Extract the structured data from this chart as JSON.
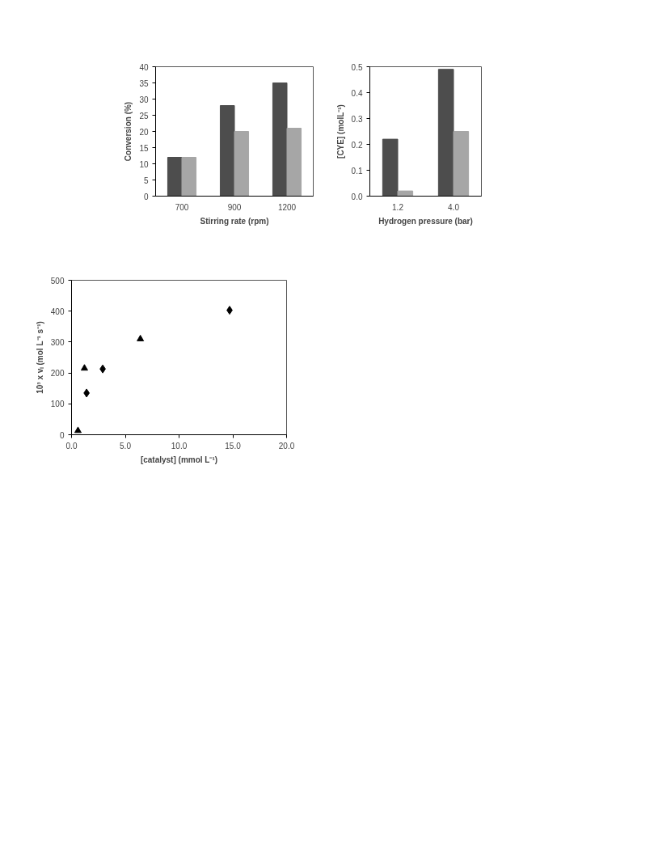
{
  "chart_data": [
    {
      "type": "bar",
      "xlabel": "Stirring rate (rpm)",
      "ylabel": "Conversion (%)",
      "categories": [
        "700",
        "900",
        "1200"
      ],
      "series": [
        {
          "color": "#4d4d4d",
          "values": [
            12,
            28,
            35
          ]
        },
        {
          "color": "#a6a6a6",
          "values": [
            12,
            20,
            21
          ]
        }
      ],
      "ylim": [
        0,
        40
      ],
      "yticks": [
        0,
        5,
        10,
        15,
        20,
        25,
        30,
        35,
        40
      ],
      "grid": false
    },
    {
      "type": "bar",
      "xlabel": "Hydrogen pressure (bar)",
      "ylabel": "[CYE] (molL⁻¹)",
      "categories": [
        "1.2",
        "4.0"
      ],
      "series": [
        {
          "color": "#4d4d4d",
          "values": [
            0.22,
            0.49
          ]
        },
        {
          "color": "#a6a6a6",
          "values": [
            0.02,
            0.25
          ]
        }
      ],
      "ylim": [
        0,
        0.5
      ],
      "yticks": [
        {
          "value": 0,
          "label": "0.0"
        },
        0.1,
        0.2,
        0.3,
        0.4,
        0.5
      ],
      "grid": false
    },
    {
      "type": "scatter",
      "xlabel": "[catalyst] (mmol L⁻¹)",
      "ylabel": "10³ x vᵢ (mol L⁻¹ s⁻¹)",
      "series": [
        {
          "color": "#000000",
          "marker": "triangle",
          "x": [
            0.6,
            1.2,
            6.4
          ],
          "values": [
            13,
            215,
            310
          ]
        },
        {
          "color": "#000000",
          "marker": "diamond",
          "x": [
            1.4,
            2.9,
            14.7
          ],
          "values": [
            135,
            213,
            403
          ]
        }
      ],
      "xlim": [
        0,
        20
      ],
      "xticks": [
        {
          "value": 0,
          "label": "0.0"
        },
        {
          "value": 5,
          "label": "5.0"
        },
        {
          "value": 10,
          "label": "10.0"
        },
        {
          "value": 15,
          "label": "15.0"
        },
        {
          "value": 20,
          "label": "20.0"
        }
      ],
      "ylim": [
        0,
        500
      ],
      "yticks": [
        0,
        100,
        200,
        300,
        400,
        500
      ],
      "grid": false
    }
  ]
}
